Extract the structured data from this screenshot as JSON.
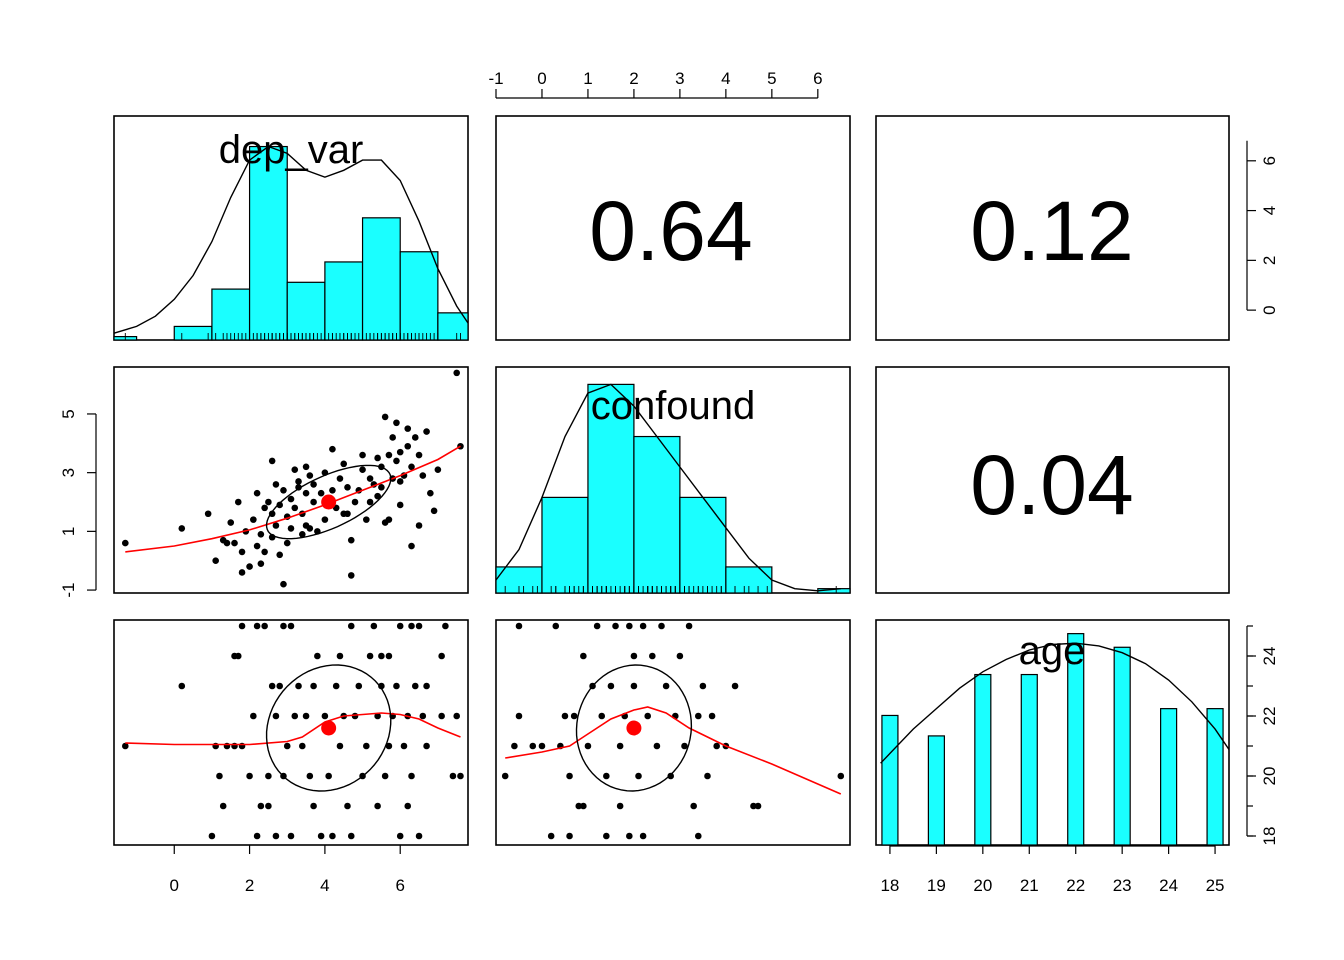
{
  "chart_data": {
    "type": "scatter",
    "title": "",
    "variables": [
      "dep_var",
      "confound",
      "age"
    ],
    "correlations": [
      {
        "row": "dep_var",
        "col": "confound",
        "value": "0.64"
      },
      {
        "row": "dep_var",
        "col": "age",
        "value": "0.12"
      },
      {
        "row": "confound",
        "col": "age",
        "value": "0.04"
      }
    ],
    "axes": {
      "dep_var": {
        "range": [
          -1.6,
          7.8
        ],
        "ticks": [
          0,
          2,
          4,
          6
        ],
        "tick_labels": [
          "0",
          "2",
          "4",
          "6"
        ]
      },
      "confound": {
        "range": [
          -1.0,
          6.7
        ],
        "ticks": [
          -1,
          0,
          1,
          2,
          3,
          4,
          5,
          6
        ],
        "tick_labels": [
          "-1",
          "0",
          "1",
          "2",
          "3",
          "4",
          "5",
          "6"
        ]
      },
      "confound_left": {
        "ticks": [
          -1,
          1,
          3,
          5
        ],
        "tick_labels": [
          "-1",
          "1",
          "3",
          "5"
        ]
      },
      "confound_right": {
        "ticks": [
          0,
          2,
          4,
          6
        ],
        "tick_labels": [
          "0",
          "2",
          "4",
          "6"
        ]
      },
      "age": {
        "range": [
          17.7,
          25.3
        ],
        "ticks": [
          18,
          19,
          20,
          21,
          22,
          23,
          24,
          25
        ],
        "tick_labels": [
          "18",
          "19",
          "20",
          "21",
          "22",
          "23",
          "24",
          "25"
        ]
      },
      "age_right": {
        "ticks": [
          18,
          20,
          22,
          24
        ],
        "tick_labels": [
          "18",
          "20",
          "22",
          "24"
        ]
      }
    },
    "histograms": {
      "dep_var": {
        "breaks": [
          -2,
          -1,
          0,
          1,
          2,
          3,
          4,
          5,
          6,
          7,
          8
        ],
        "density": [
          0.01,
          0,
          0.04,
          0.15,
          0.57,
          0.17,
          0.23,
          0.36,
          0.26,
          0.08
        ],
        "density_curve_x": [
          -1.6,
          -1,
          -0.5,
          0,
          0.5,
          1,
          1.5,
          2,
          2.5,
          3,
          3.5,
          4,
          4.5,
          5,
          5.5,
          6,
          6.5,
          7,
          7.5,
          7.8
        ],
        "density_curve_y": [
          0.02,
          0.04,
          0.07,
          0.12,
          0.19,
          0.29,
          0.42,
          0.53,
          0.57,
          0.55,
          0.5,
          0.48,
          0.5,
          0.53,
          0.53,
          0.47,
          0.35,
          0.21,
          0.1,
          0.05
        ]
      },
      "confound": {
        "breaks": [
          -1,
          0,
          1,
          2,
          3,
          4,
          5,
          6,
          7
        ],
        "density": [
          0.06,
          0.22,
          0.48,
          0.36,
          0.22,
          0.06,
          0,
          0.01
        ],
        "density_curve_x": [
          -1,
          -0.5,
          0,
          0.5,
          1,
          1.5,
          2,
          2.5,
          3,
          3.5,
          4,
          4.5,
          5,
          5.5,
          6,
          6.5
        ],
        "density_curve_y": [
          0.03,
          0.1,
          0.22,
          0.36,
          0.46,
          0.48,
          0.43,
          0.36,
          0.29,
          0.22,
          0.15,
          0.08,
          0.03,
          0.01,
          0.005,
          0.01
        ]
      },
      "age": {
        "categories": [
          "18",
          "19",
          "20",
          "21",
          "22",
          "23",
          "24",
          "25"
        ],
        "density": [
          0.095,
          0.08,
          0.125,
          0.125,
          0.155,
          0.145,
          0.1,
          0.1
        ],
        "density_curve_x": [
          17.8,
          18.5,
          19,
          19.5,
          20,
          20.5,
          21,
          21.5,
          22,
          22.5,
          23,
          23.5,
          24,
          24.5,
          25,
          25.3
        ],
        "density_curve_y": [
          0.06,
          0.085,
          0.1,
          0.115,
          0.127,
          0.136,
          0.143,
          0.147,
          0.148,
          0.146,
          0.141,
          0.133,
          0.121,
          0.105,
          0.085,
          0.07
        ]
      }
    },
    "scatter": {
      "dep_var_vs_confound": [
        [
          -1.3,
          0.6
        ],
        [
          0.2,
          1.1
        ],
        [
          0.9,
          1.6
        ],
        [
          1.1,
          0.0
        ],
        [
          1.3,
          0.7
        ],
        [
          1.4,
          0.6
        ],
        [
          1.5,
          1.3
        ],
        [
          1.6,
          0.6
        ],
        [
          1.7,
          2.0
        ],
        [
          1.8,
          0.3
        ],
        [
          1.9,
          1.0
        ],
        [
          1.8,
          -0.4
        ],
        [
          2.0,
          -0.2
        ],
        [
          2.1,
          1.4
        ],
        [
          2.2,
          0.5
        ],
        [
          2.2,
          2.3
        ],
        [
          2.3,
          0.9
        ],
        [
          2.3,
          -0.1
        ],
        [
          2.4,
          1.8
        ],
        [
          2.4,
          0.3
        ],
        [
          2.5,
          2.0
        ],
        [
          2.6,
          3.4
        ],
        [
          2.6,
          1.6
        ],
        [
          2.6,
          0.8
        ],
        [
          2.7,
          2.6
        ],
        [
          2.7,
          1.2
        ],
        [
          2.8,
          0.2
        ],
        [
          2.8,
          1.9
        ],
        [
          2.9,
          -0.8
        ],
        [
          2.9,
          2.4
        ],
        [
          3.0,
          1.5
        ],
        [
          3.0,
          0.6
        ],
        [
          3.1,
          1.1
        ],
        [
          3.1,
          2.1
        ],
        [
          3.2,
          3.1
        ],
        [
          3.2,
          1.8
        ],
        [
          3.3,
          2.5
        ],
        [
          3.3,
          2.7
        ],
        [
          3.4,
          0.9
        ],
        [
          3.4,
          1.6
        ],
        [
          3.5,
          3.2
        ],
        [
          3.5,
          2.3
        ],
        [
          3.5,
          1.2
        ],
        [
          3.6,
          2.9
        ],
        [
          3.6,
          1.1
        ],
        [
          3.7,
          2.0
        ],
        [
          3.7,
          2.6
        ],
        [
          3.8,
          1.0
        ],
        [
          3.9,
          2.3
        ],
        [
          4.0,
          1.4
        ],
        [
          4.0,
          3.0
        ],
        [
          4.1,
          2.1
        ],
        [
          4.2,
          3.8
        ],
        [
          4.2,
          2.4
        ],
        [
          4.3,
          1.8
        ],
        [
          4.4,
          2.8
        ],
        [
          4.5,
          1.6
        ],
        [
          4.5,
          3.3
        ],
        [
          4.6,
          2.5
        ],
        [
          4.6,
          1.6
        ],
        [
          4.7,
          0.7
        ],
        [
          4.7,
          -0.5
        ],
        [
          4.8,
          2.0
        ],
        [
          4.9,
          2.4
        ],
        [
          5.0,
          3.1
        ],
        [
          5.0,
          3.6
        ],
        [
          5.1,
          1.4
        ],
        [
          5.2,
          2.0
        ],
        [
          5.2,
          2.8
        ],
        [
          5.3,
          2.6
        ],
        [
          5.4,
          3.5
        ],
        [
          5.4,
          2.2
        ],
        [
          5.5,
          2.5
        ],
        [
          5.5,
          3.2
        ],
        [
          5.6,
          1.3
        ],
        [
          5.6,
          4.9
        ],
        [
          5.7,
          3.6
        ],
        [
          5.7,
          1.4
        ],
        [
          5.8,
          2.8
        ],
        [
          5.8,
          4.2
        ],
        [
          5.9,
          3.4
        ],
        [
          5.9,
          4.7
        ],
        [
          6.0,
          2.7
        ],
        [
          6.0,
          1.9
        ],
        [
          6.0,
          3.7
        ],
        [
          6.1,
          2.9
        ],
        [
          6.2,
          4.5
        ],
        [
          6.2,
          3.9
        ],
        [
          6.3,
          0.5
        ],
        [
          6.3,
          3.2
        ],
        [
          6.4,
          4.2
        ],
        [
          6.5,
          1.2
        ],
        [
          6.5,
          3.6
        ],
        [
          6.6,
          2.9
        ],
        [
          6.7,
          4.4
        ],
        [
          6.8,
          2.3
        ],
        [
          6.9,
          1.7
        ],
        [
          7.0,
          3.1
        ],
        [
          7.5,
          6.4
        ],
        [
          7.6,
          3.9
        ]
      ],
      "dep_var_vs_age": [
        [
          -1.3,
          21
        ],
        [
          0.2,
          23
        ],
        [
          1.0,
          18
        ],
        [
          1.1,
          21
        ],
        [
          1.2,
          20
        ],
        [
          1.3,
          19
        ],
        [
          1.4,
          21
        ],
        [
          1.6,
          24
        ],
        [
          1.6,
          21
        ],
        [
          1.7,
          24
        ],
        [
          1.8,
          21
        ],
        [
          1.8,
          25
        ],
        [
          2.0,
          20
        ],
        [
          2.1,
          22
        ],
        [
          2.2,
          25
        ],
        [
          2.2,
          18
        ],
        [
          2.3,
          19
        ],
        [
          2.4,
          25
        ],
        [
          2.5,
          19
        ],
        [
          2.5,
          20
        ],
        [
          2.6,
          23
        ],
        [
          2.7,
          22
        ],
        [
          2.7,
          18
        ],
        [
          2.8,
          23
        ],
        [
          2.9,
          25
        ],
        [
          2.9,
          20
        ],
        [
          3.0,
          21
        ],
        [
          3.1,
          25
        ],
        [
          3.1,
          18
        ],
        [
          3.2,
          22
        ],
        [
          3.3,
          23
        ],
        [
          3.4,
          21
        ],
        [
          3.5,
          22
        ],
        [
          3.6,
          20
        ],
        [
          3.7,
          19
        ],
        [
          3.7,
          23
        ],
        [
          3.8,
          24
        ],
        [
          3.9,
          18
        ],
        [
          4.0,
          22
        ],
        [
          4.1,
          20
        ],
        [
          4.2,
          18
        ],
        [
          4.3,
          23
        ],
        [
          4.4,
          21
        ],
        [
          4.4,
          24
        ],
        [
          4.5,
          22
        ],
        [
          4.6,
          19
        ],
        [
          4.7,
          25
        ],
        [
          4.7,
          18
        ],
        [
          4.8,
          22
        ],
        [
          4.9,
          23
        ],
        [
          5.0,
          20
        ],
        [
          5.1,
          21
        ],
        [
          5.2,
          24
        ],
        [
          5.3,
          25
        ],
        [
          5.4,
          22
        ],
        [
          5.4,
          19
        ],
        [
          5.5,
          24
        ],
        [
          5.5,
          23
        ],
        [
          5.6,
          20
        ],
        [
          5.7,
          21
        ],
        [
          5.7,
          24
        ],
        [
          5.8,
          22
        ],
        [
          5.9,
          23
        ],
        [
          6.0,
          18
        ],
        [
          6.0,
          25
        ],
        [
          6.1,
          21
        ],
        [
          6.2,
          22
        ],
        [
          6.2,
          19
        ],
        [
          6.3,
          20
        ],
        [
          6.3,
          25
        ],
        [
          6.4,
          23
        ],
        [
          6.5,
          25
        ],
        [
          6.5,
          18
        ],
        [
          6.6,
          22
        ],
        [
          6.7,
          21
        ],
        [
          6.7,
          23
        ],
        [
          7.1,
          24
        ],
        [
          7.1,
          22
        ],
        [
          7.2,
          25
        ],
        [
          7.4,
          20
        ],
        [
          7.5,
          22
        ],
        [
          7.6,
          20
        ]
      ],
      "confound_vs_age": [
        [
          -0.8,
          20
        ],
        [
          -0.6,
          21
        ],
        [
          -0.5,
          25
        ],
        [
          -0.5,
          22
        ],
        [
          -0.2,
          21
        ],
        [
          0.0,
          21
        ],
        [
          0.2,
          18
        ],
        [
          0.3,
          25
        ],
        [
          0.4,
          21
        ],
        [
          0.5,
          22
        ],
        [
          0.6,
          20
        ],
        [
          0.6,
          18
        ],
        [
          0.7,
          22
        ],
        [
          0.8,
          19
        ],
        [
          0.9,
          19
        ],
        [
          0.9,
          24
        ],
        [
          1.0,
          21
        ],
        [
          1.1,
          23
        ],
        [
          1.2,
          25
        ],
        [
          1.3,
          22
        ],
        [
          1.4,
          18
        ],
        [
          1.4,
          20
        ],
        [
          1.5,
          23
        ],
        [
          1.6,
          25
        ],
        [
          1.7,
          21
        ],
        [
          1.7,
          19
        ],
        [
          1.8,
          22
        ],
        [
          1.9,
          18
        ],
        [
          1.9,
          25
        ],
        [
          2.0,
          24
        ],
        [
          2.0,
          23
        ],
        [
          2.1,
          20
        ],
        [
          2.2,
          25
        ],
        [
          2.2,
          18
        ],
        [
          2.3,
          22
        ],
        [
          2.4,
          24
        ],
        [
          2.5,
          21
        ],
        [
          2.6,
          25
        ],
        [
          2.7,
          23
        ],
        [
          2.8,
          20
        ],
        [
          2.9,
          22
        ],
        [
          3.0,
          24
        ],
        [
          3.1,
          21
        ],
        [
          3.2,
          25
        ],
        [
          3.3,
          19
        ],
        [
          3.4,
          22
        ],
        [
          3.4,
          18
        ],
        [
          3.5,
          23
        ],
        [
          3.6,
          20
        ],
        [
          3.7,
          22
        ],
        [
          3.8,
          21
        ],
        [
          4.0,
          21
        ],
        [
          4.2,
          23
        ],
        [
          4.6,
          19
        ],
        [
          4.7,
          19
        ],
        [
          6.5,
          20
        ]
      ]
    },
    "loess": {
      "dep_var_vs_confound": {
        "x": [
          -1.3,
          0,
          1,
          2,
          3,
          4,
          5,
          6,
          7,
          7.6
        ],
        "y": [
          0.3,
          0.5,
          0.75,
          1.05,
          1.45,
          1.9,
          2.4,
          2.9,
          3.45,
          3.9
        ]
      },
      "dep_var_vs_age": {
        "x": [
          -1.3,
          0,
          1,
          2,
          3,
          3.4,
          4,
          4.5,
          5,
          5.5,
          6,
          6.5,
          7,
          7.6
        ],
        "y": [
          21.1,
          21.05,
          21.05,
          21.05,
          21.15,
          21.3,
          21.8,
          22.0,
          22.05,
          22.1,
          22.05,
          21.9,
          21.6,
          21.3
        ]
      },
      "confound_vs_age": {
        "x": [
          -0.8,
          0,
          0.6,
          1,
          1.5,
          2,
          2.3,
          2.7,
          3.2,
          4,
          5,
          6.5
        ],
        "y": [
          20.6,
          20.8,
          21.0,
          21.4,
          21.9,
          22.2,
          22.3,
          22.1,
          21.6,
          21.0,
          20.4,
          19.4
        ]
      }
    },
    "centroids": {
      "dep_var_vs_confound": [
        4.1,
        2.0
      ],
      "dep_var_vs_age": [
        4.1,
        21.6
      ],
      "confound_vs_age": [
        2.0,
        21.6
      ]
    },
    "ellipses": {
      "dep_var_vs_confound": {
        "center": [
          4.1,
          2.0
        ],
        "sd_x": 1.65,
        "sd_y": 1.25,
        "r": 0.64,
        "k": 1.0
      },
      "dep_var_vs_age": {
        "center": [
          4.1,
          21.6
        ],
        "sd_x": 1.65,
        "sd_y": 2.1,
        "r": 0.12,
        "k": 1.0
      },
      "confound_vs_age": {
        "center": [
          2.0,
          21.6
        ],
        "sd_x": 1.25,
        "sd_y": 2.1,
        "r": 0.04,
        "k": 1.0
      }
    },
    "grid": false,
    "legend": "none"
  }
}
